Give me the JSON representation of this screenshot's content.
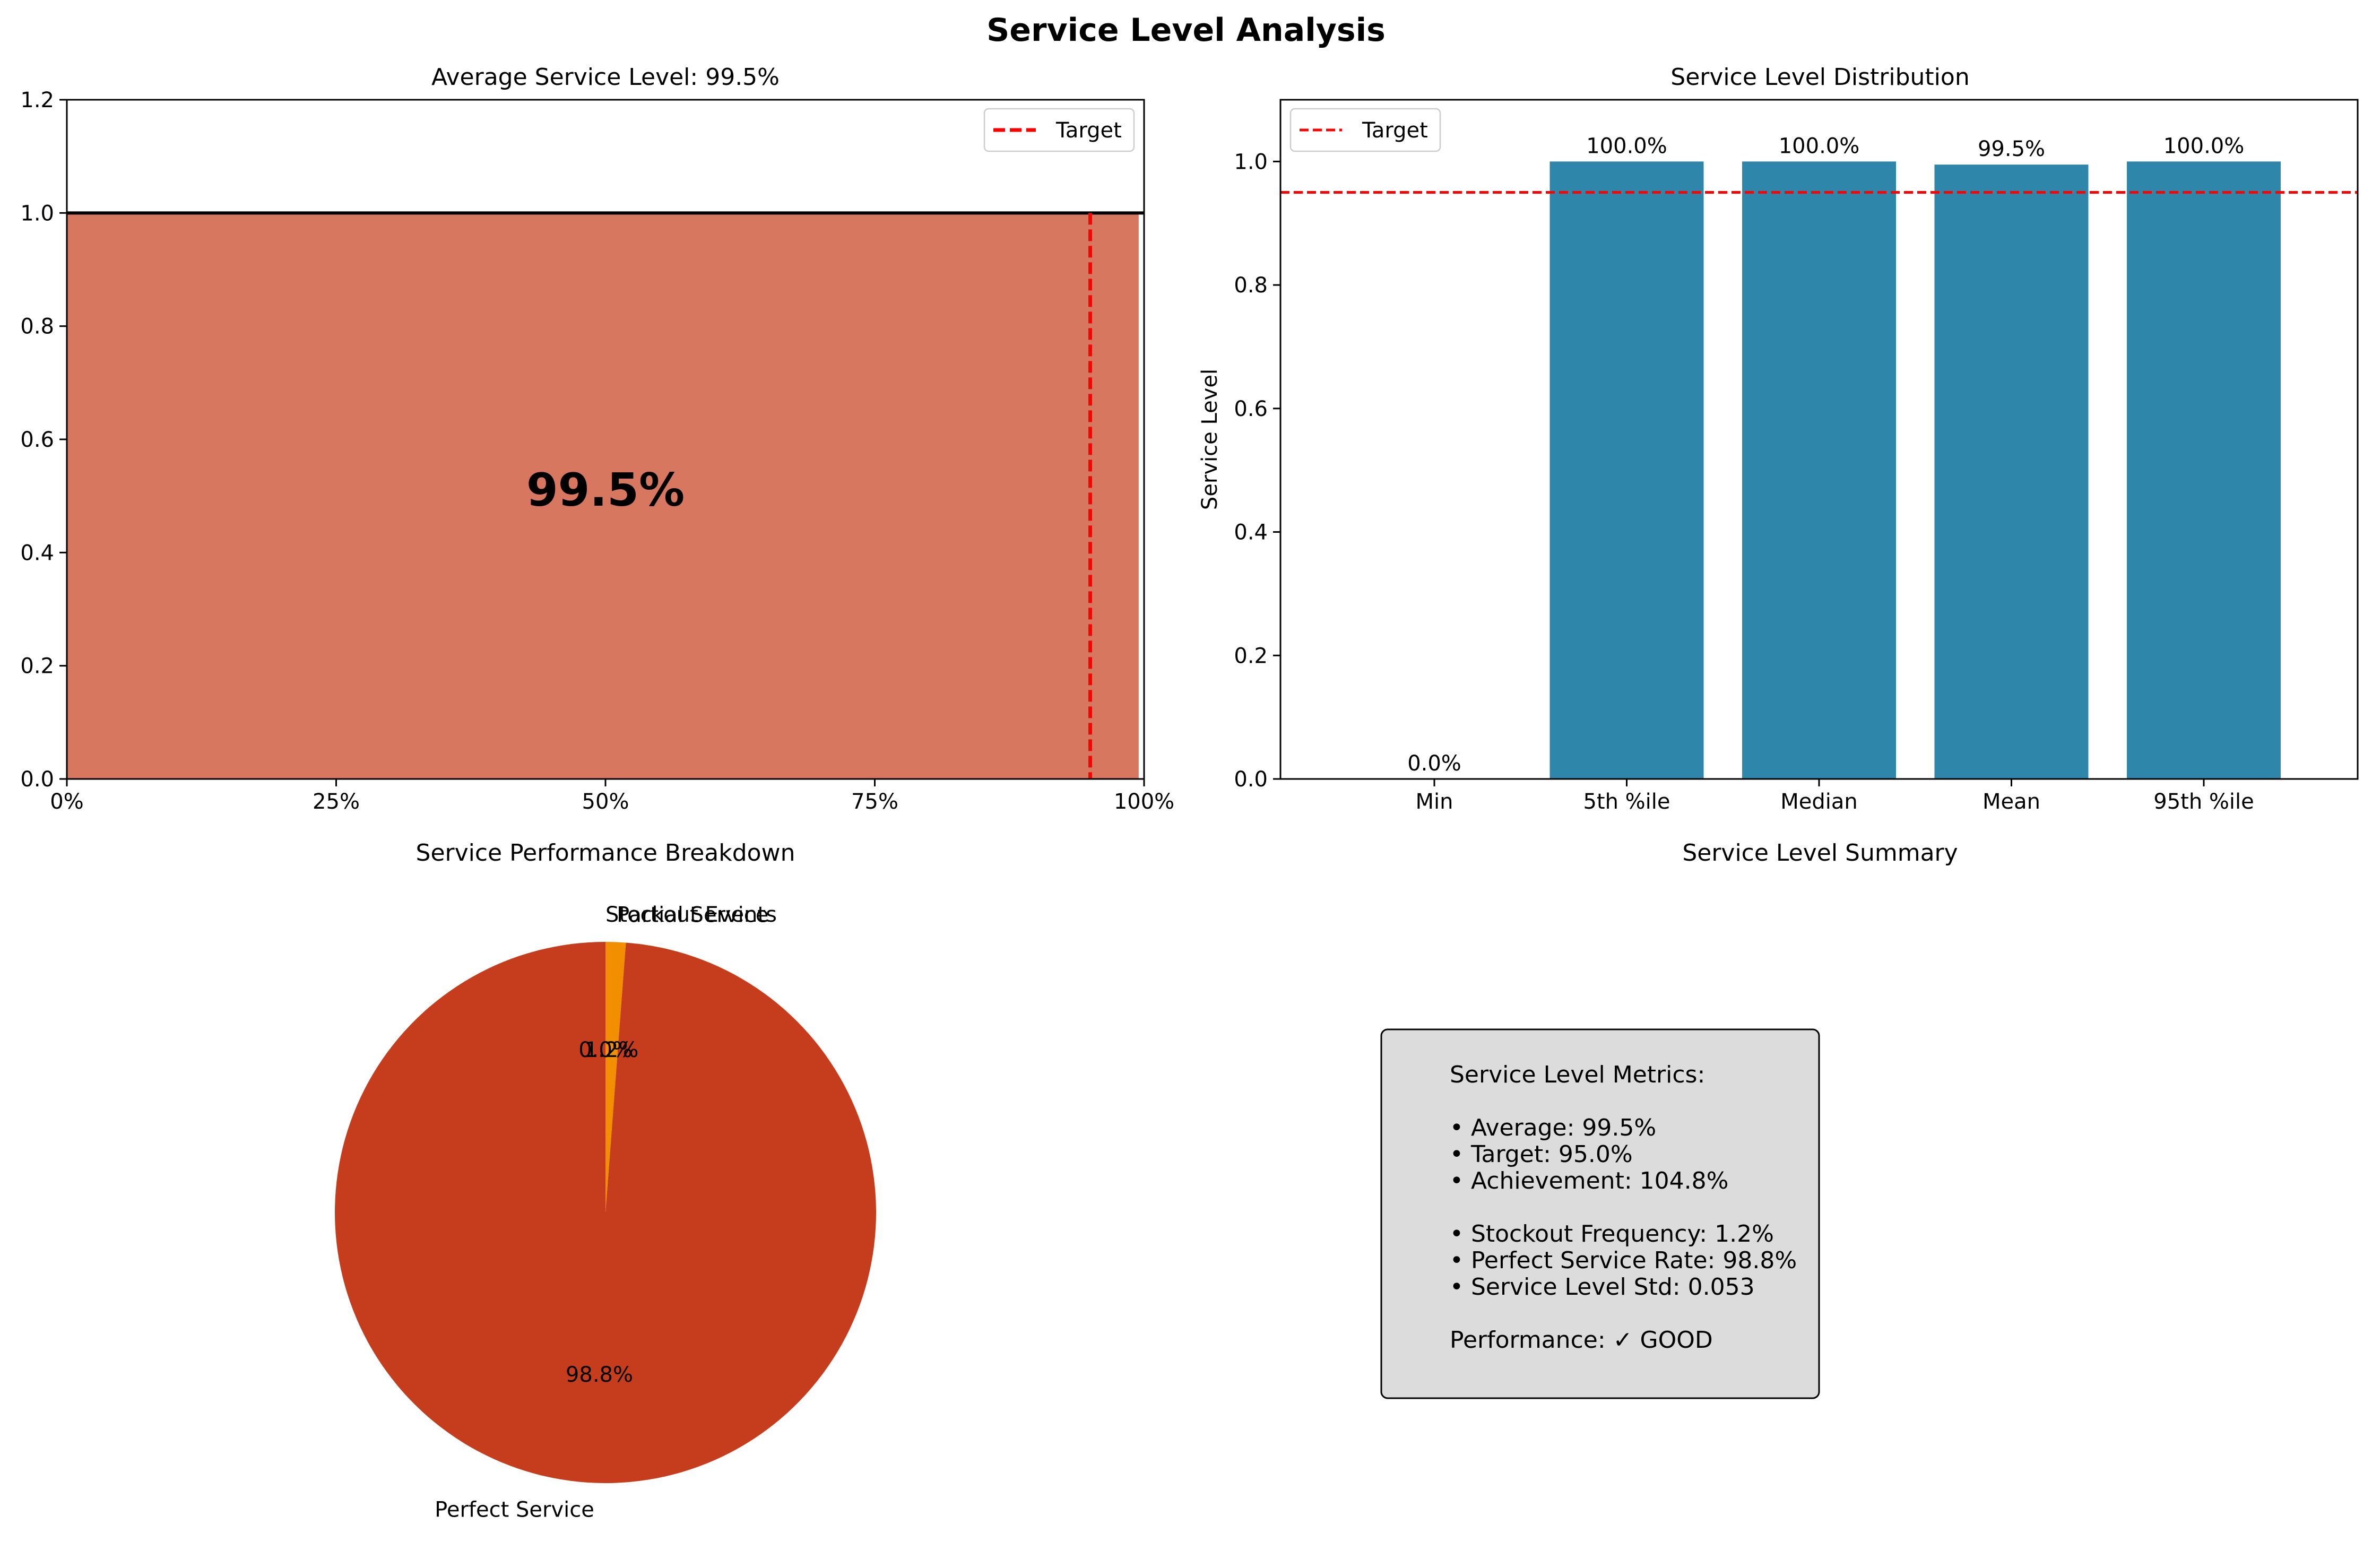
{
  "figure": {
    "suptitle": "Service Level Analysis"
  },
  "colors": {
    "gauge_fill": "#D7775F",
    "target_line": "#FF0000",
    "bar": "#2E86AB",
    "pie_perfect": "#C53D1C",
    "pie_partial": "#F18F01",
    "pie_stockout": "#2E86AB",
    "textbox_bg": "#DCDCDC"
  },
  "chart_data": [
    {
      "type": "area",
      "title": "Average Service Level: 99.5%",
      "center_label": "99.5%",
      "fill_fraction": 0.995,
      "ceiling": 1.0,
      "target": 0.95,
      "xlim": [
        0,
        1
      ],
      "ylim": [
        0,
        1.2
      ],
      "x_ticks": [
        0,
        0.25,
        0.5,
        0.75,
        1.0
      ],
      "x_tick_labels": [
        "0%",
        "25%",
        "50%",
        "75%",
        "100%"
      ],
      "y_ticks": [
        0,
        0.2,
        0.4,
        0.6,
        0.8,
        1.0,
        1.2
      ],
      "y_tick_labels": [
        "0.0",
        "0.2",
        "0.4",
        "0.6",
        "0.8",
        "1.0",
        "1.2"
      ],
      "legend": {
        "entries": [
          "Target"
        ],
        "placement": "top-right"
      }
    },
    {
      "type": "bar",
      "title": "Service Level Distribution",
      "ylabel": "Service Level",
      "categories": [
        "Min",
        "5th %ile",
        "Median",
        "Mean",
        "95th %ile"
      ],
      "values": [
        0.0,
        1.0,
        1.0,
        0.995,
        1.0
      ],
      "data_labels": [
        "0.0%",
        "100.0%",
        "100.0%",
        "99.5%",
        "100.0%"
      ],
      "target": 0.95,
      "ylim": [
        0,
        1.1
      ],
      "y_ticks": [
        0,
        0.2,
        0.4,
        0.6,
        0.8,
        1.0
      ],
      "y_tick_labels": [
        "0.0",
        "0.2",
        "0.4",
        "0.6",
        "0.8",
        "1.0"
      ],
      "legend": {
        "entries": [
          "Target"
        ],
        "placement": "top-left"
      }
    },
    {
      "type": "pie",
      "title": "Service Performance Breakdown",
      "slices": [
        {
          "label": "Perfect Service",
          "value": 98.8,
          "pct_label": "98.8%"
        },
        {
          "label": "Partial Service",
          "value": 1.2,
          "pct_label": "1.2%"
        },
        {
          "label": "Stockout Events",
          "value": 0.0,
          "pct_label": "0.0%"
        }
      ]
    }
  ],
  "summary": {
    "title": "Service Level Summary",
    "lines": [
      "Service Level Metrics:",
      "",
      "• Average: 99.5%",
      "• Target: 95.0%",
      "• Achievement: 104.8%",
      "",
      "• Stockout Frequency: 1.2%",
      "• Perfect Service Rate: 98.8%",
      "• Service Level Std: 0.053",
      "",
      "Performance: ✓ GOOD"
    ]
  }
}
